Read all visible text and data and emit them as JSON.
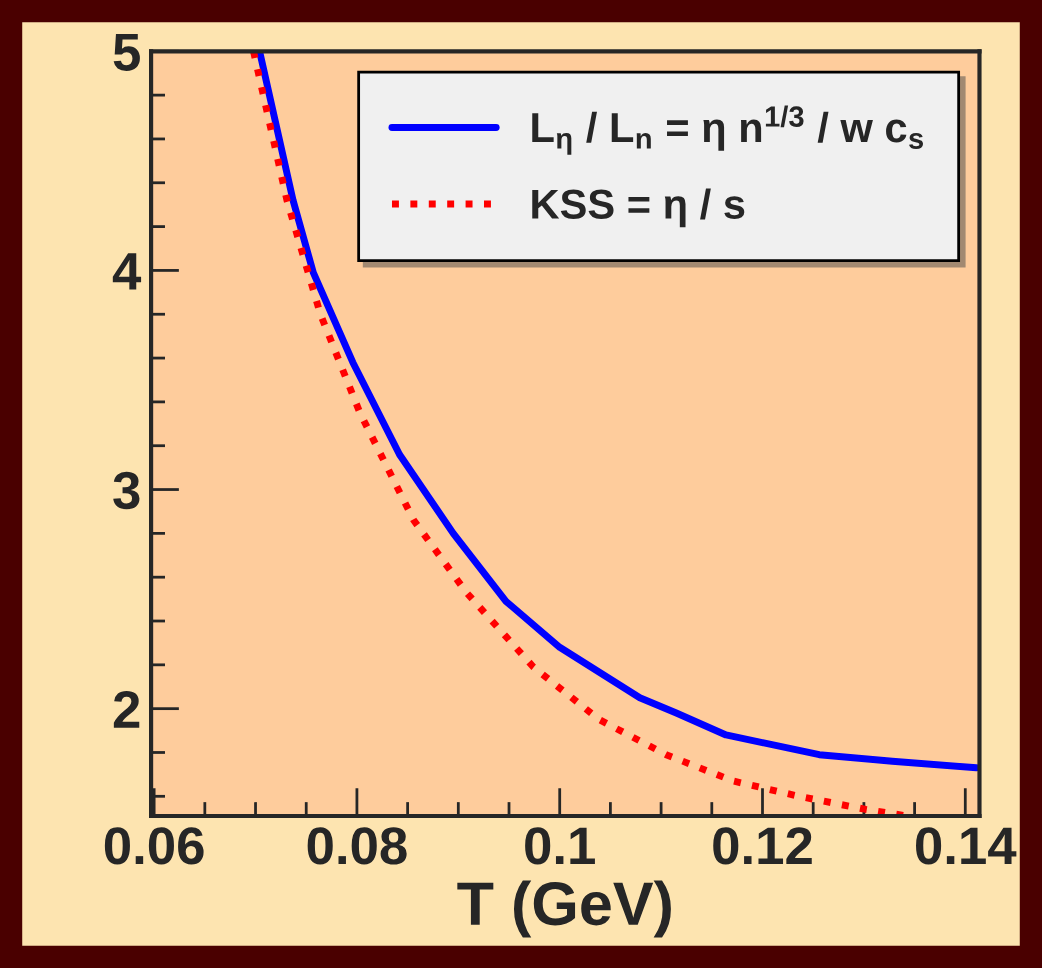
{
  "chart_data": {
    "type": "line",
    "xlabel": "T (GeV)",
    "xlim": [
      0.0597,
      0.1414
    ],
    "ylim": [
      1.51,
      5
    ],
    "xticks": [
      0.06,
      0.08,
      0.1,
      0.12,
      0.14
    ],
    "yticks": [
      2,
      3,
      4,
      5
    ],
    "grid": false,
    "legend": "top right",
    "series": [
      {
        "name": "L$_{η}$ / L$_{n}$ = η n$^{1/3}$ / w c$_{s}$",
        "color": "#0000ff",
        "line_style": "solid",
        "x": [
          0.0704,
          0.0737,
          0.0757,
          0.0796,
          0.0842,
          0.0895,
          0.0947,
          0.1,
          0.1079,
          0.1115,
          0.1164,
          0.1256,
          0.1328,
          0.1411
        ],
        "values": [
          5,
          4.32,
          3.99,
          3.58,
          3.16,
          2.8,
          2.49,
          2.28,
          2.05,
          1.98,
          1.88,
          1.79,
          1.76,
          1.73
        ]
      },
      {
        "name": "KSS = η / s",
        "color": "#ff0000",
        "line_style": "dotted",
        "x": [
          0.0698,
          0.0731,
          0.0764,
          0.0803,
          0.0856,
          0.0908,
          0.0974,
          0.1039,
          0.1105,
          0.1171,
          0.1236,
          0.1302,
          0.1343
        ],
        "values": [
          5,
          4.32,
          3.8,
          3.35,
          2.86,
          2.53,
          2.19,
          1.95,
          1.79,
          1.67,
          1.6,
          1.54,
          1.51
        ]
      }
    ]
  }
}
